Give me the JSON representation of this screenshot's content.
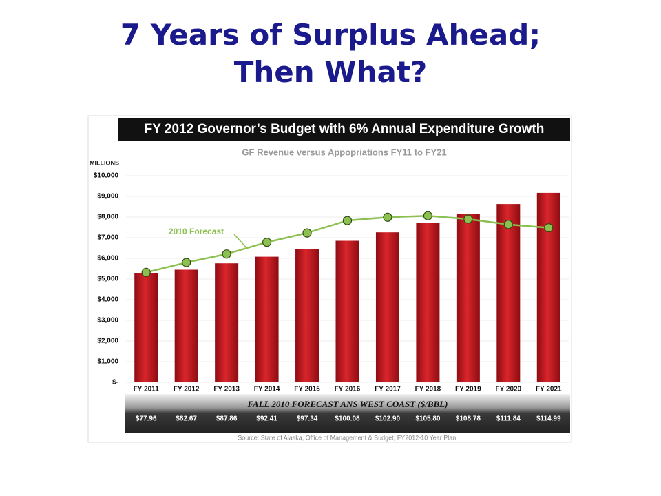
{
  "slide_title": [
    "7 Years of Surplus Ahead;",
    "Then What?"
  ],
  "chart_data": {
    "type": "bar",
    "title": "FY 2012 Governor’s Budget with 6% Annual Expenditure Growth",
    "subtitle": "GF Revenue versus Appopriations FY11 to FY21",
    "y_label": "MILLIONS",
    "categories": [
      "FY 2011",
      "FY 2012",
      "FY 2013",
      "FY 2014",
      "FY 2015",
      "FY 2016",
      "FY 2017",
      "FY 2018",
      "FY 2019",
      "FY 2020",
      "FY 2021"
    ],
    "series": [
      {
        "type": "bar",
        "color": "#c0141c",
        "values": [
          5300,
          5450,
          5760,
          6080,
          6460,
          6850,
          7260,
          7700,
          8150,
          8630,
          9170
        ]
      },
      {
        "type": "line",
        "name": "2010 Forecast",
        "color": "#8cc152",
        "values": [
          5320,
          5800,
          6210,
          6780,
          7230,
          7830,
          7990,
          8060,
          7900,
          7640,
          7480
        ]
      }
    ],
    "ylim": [
      0,
      10000
    ],
    "yticks": [
      {
        "value": 0,
        "label": "$-"
      },
      {
        "value": 1000,
        "label": "$1,000"
      },
      {
        "value": 2000,
        "label": "$2,000"
      },
      {
        "value": 3000,
        "label": "$3,000"
      },
      {
        "value": 4000,
        "label": "$4,000"
      },
      {
        "value": 5000,
        "label": "$5,000"
      },
      {
        "value": 6000,
        "label": "$6,000"
      },
      {
        "value": 7000,
        "label": "$7,000"
      },
      {
        "value": 8000,
        "label": "$8,000"
      },
      {
        "value": 9000,
        "label": "$9,000"
      },
      {
        "value": 10000,
        "label": "$10,000"
      }
    ],
    "grid": true
  },
  "forecast_table": {
    "title": "FALL 2010 FORECAST ANS WEST COAST ($/BBL)",
    "prices": [
      "$77.96",
      "$82.67",
      "$87.86",
      "$92.41",
      "$97.34",
      "$100.08",
      "$102.90",
      "$105.80",
      "$108.78",
      "$111.84",
      "$114.99"
    ]
  },
  "source": "Source:  State of Alaska, Office of Management & Budget, FY2012-10 Year Plan."
}
